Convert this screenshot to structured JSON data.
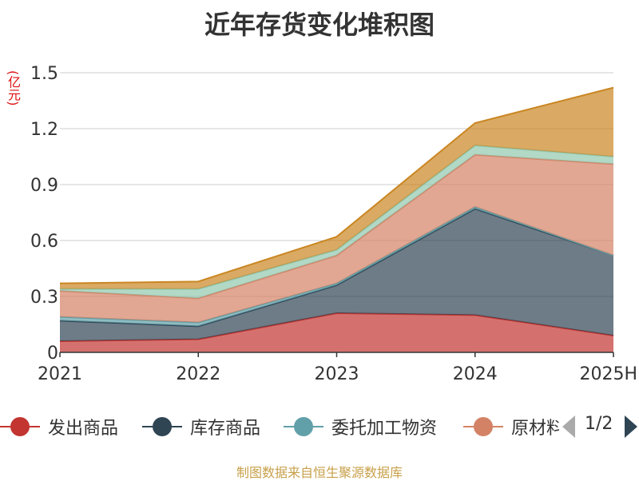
{
  "chart_data": {
    "type": "area",
    "stacked": true,
    "title": "近年存货变化堆积图",
    "unit_label": "(亿元)",
    "categories": [
      "2021",
      "2022",
      "2023",
      "2024",
      "2025H"
    ],
    "y_ticks": [
      "0",
      "0.3",
      "0.6",
      "0.9",
      "1.2",
      "1.5"
    ],
    "ylim": [
      0,
      1.5
    ],
    "grid": true,
    "series": [
      {
        "name": "发出商品",
        "color": "#c23531",
        "values": [
          0.06,
          0.07,
          0.21,
          0.2,
          0.09
        ]
      },
      {
        "name": "库存商品",
        "color": "#2f4554",
        "values": [
          0.11,
          0.07,
          0.15,
          0.57,
          0.43
        ]
      },
      {
        "name": "委托加工物资",
        "color": "#61a0a8",
        "values": [
          0.02,
          0.02,
          0.01,
          0.01,
          0.0
        ]
      },
      {
        "name": "原材料",
        "color": "#d48265",
        "values": [
          0.14,
          0.13,
          0.15,
          0.28,
          0.49
        ]
      },
      {
        "color": "#91c7ae",
        "values": [
          0.01,
          0.05,
          0.03,
          0.05,
          0.04
        ]
      },
      {
        "color": "#ca8622",
        "values": [
          0.03,
          0.04,
          0.07,
          0.12,
          0.37
        ]
      }
    ],
    "legend_position": "bottom",
    "legend_page": "1/2"
  },
  "source_text": "制图数据来自恒生聚源数据库"
}
